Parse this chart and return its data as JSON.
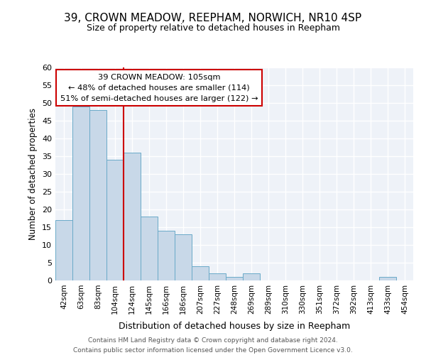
{
  "title1": "39, CROWN MEADOW, REEPHAM, NORWICH, NR10 4SP",
  "title2": "Size of property relative to detached houses in Reepham",
  "xlabel": "Distribution of detached houses by size in Reepham",
  "ylabel": "Number of detached properties",
  "bin_labels": [
    "42sqm",
    "63sqm",
    "83sqm",
    "104sqm",
    "124sqm",
    "145sqm",
    "166sqm",
    "186sqm",
    "207sqm",
    "227sqm",
    "248sqm",
    "269sqm",
    "289sqm",
    "310sqm",
    "330sqm",
    "351sqm",
    "372sqm",
    "392sqm",
    "413sqm",
    "433sqm",
    "454sqm"
  ],
  "bar_heights": [
    17,
    49,
    48,
    34,
    36,
    18,
    14,
    13,
    4,
    2,
    1,
    2,
    0,
    0,
    0,
    0,
    0,
    0,
    0,
    1,
    0
  ],
  "bar_color": "#c8d8e8",
  "bar_edge_color": "#6aaac8",
  "vline_x_index": 3,
  "vline_color": "#cc0000",
  "annotation_line1": "39 CROWN MEADOW: 105sqm",
  "annotation_line2": "← 48% of detached houses are smaller (114)",
  "annotation_line3": "51% of semi-detached houses are larger (122) →",
  "annotation_box_color": "white",
  "annotation_box_edge_color": "#cc0000",
  "ylim": [
    0,
    60
  ],
  "yticks": [
    0,
    5,
    10,
    15,
    20,
    25,
    30,
    35,
    40,
    45,
    50,
    55,
    60
  ],
  "footer_text": "Contains HM Land Registry data © Crown copyright and database right 2024.\nContains public sector information licensed under the Open Government Licence v3.0.",
  "background_color": "#eef2f8",
  "grid_color": "white",
  "title1_fontsize": 11,
  "title2_fontsize": 9
}
